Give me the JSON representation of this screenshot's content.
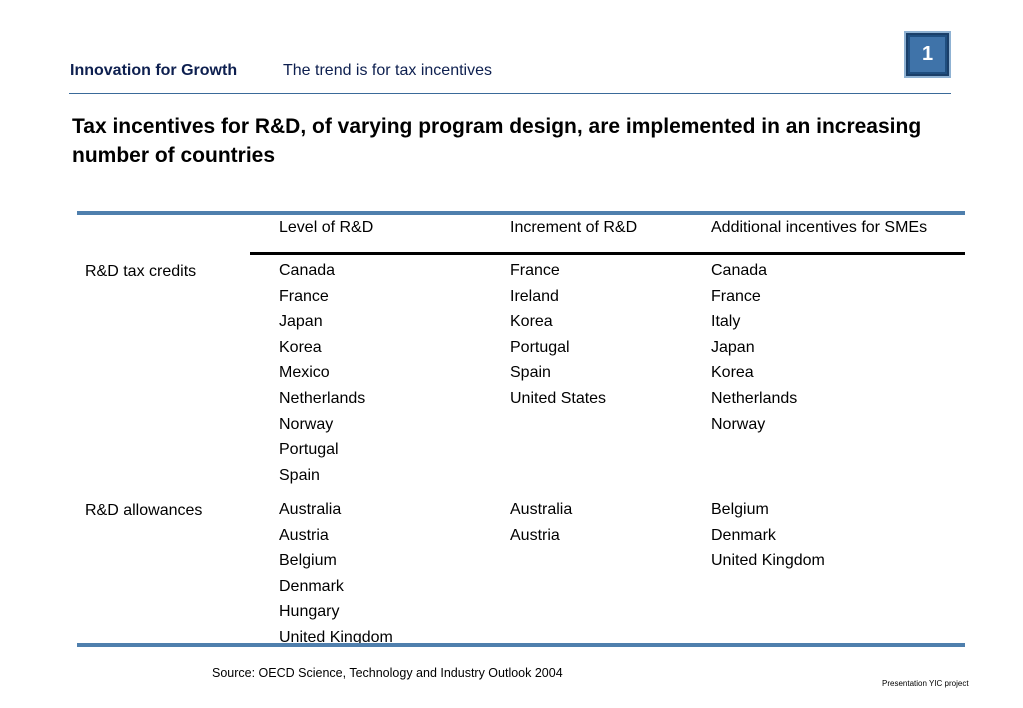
{
  "header": {
    "section": "Innovation for Growth",
    "subtitle": "The trend is for tax incentives",
    "page_number": "1"
  },
  "title": "Tax incentives for R&D, of varying program design, are implemented in an increasing number of countries",
  "table": {
    "columns": [
      "Level of R&D",
      "Increment of R&D",
      "Additional incentives for SMEs"
    ],
    "rows": [
      {
        "label": "R&D tax credits",
        "level": [
          "Canada",
          "France",
          "Japan",
          "Korea",
          "Mexico",
          "Netherlands",
          "Norway",
          "Portugal",
          "Spain"
        ],
        "increment": [
          "France",
          "Ireland",
          "Korea",
          "Portugal",
          "Spain",
          "United States"
        ],
        "sme": [
          "Canada",
          "France",
          "Italy",
          "Japan",
          "Korea",
          "Netherlands",
          "Norway"
        ]
      },
      {
        "label": "R&D allowances",
        "level": [
          "Australia",
          "Austria",
          "Belgium",
          "Denmark",
          "Hungary",
          "United Kingdom"
        ],
        "increment": [
          "Australia",
          "Austria"
        ],
        "sme": [
          "Belgium",
          "Denmark",
          "United Kingdom"
        ]
      }
    ]
  },
  "source": "Source: OECD Science, Technology and Industry Outlook 2004",
  "footer": "Presentation YIC project"
}
